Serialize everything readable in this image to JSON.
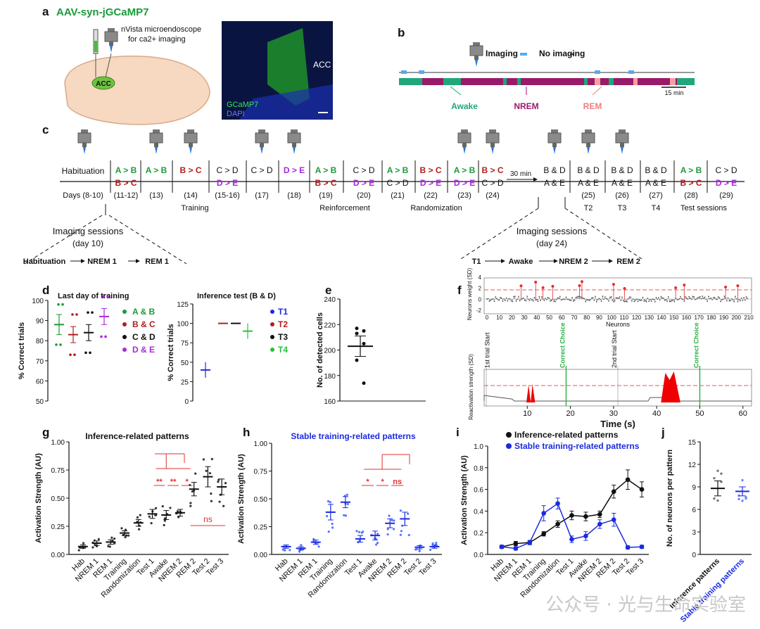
{
  "colors": {
    "green": "#1a9a3a",
    "red": "#b01e1e",
    "purple": "#a52bd8",
    "blue": "#1a2be0",
    "black": "#111111",
    "bright_green": "#26c23a",
    "bright_red": "#e8302f"
  },
  "panel_labels": [
    "a",
    "b",
    "c",
    "d",
    "e",
    "f",
    "g",
    "h",
    "i",
    "j"
  ],
  "panel_a": {
    "title": "AAV-syn-jGCaMP7",
    "device": "nVista microendoscope",
    "device2": "for ca2+ imaging",
    "region": "ACC",
    "img_region": "ACC",
    "stain1": "GCaMP7",
    "stain2": "DAPI"
  },
  "panel_b": {
    "imaging": "Imaging",
    "no_imaging": "No imaging",
    "awake": "Awake",
    "nrem": "NREM",
    "rem": "REM",
    "scale": "15 min"
  },
  "panel_c": {
    "habituation": "Habituation",
    "days_label": "Days (8-10)",
    "thirty": "30 min",
    "groups": [
      "Training",
      "Reinforcement",
      "Randomization",
      "T2",
      "T3",
      "T4",
      "Test sessions"
    ],
    "sessions": [
      {
        "top": "A > B",
        "top_c": "green",
        "bot": "B > C",
        "bot_c": "red",
        "day": "(11-12)"
      },
      {
        "top": "A > B",
        "top_c": "green",
        "bot": "",
        "bot_c": "black",
        "day": "(13)"
      },
      {
        "top": "B > C",
        "top_c": "red",
        "bot": "",
        "bot_c": "black",
        "day": "(14)"
      },
      {
        "top": "C > D",
        "top_c": "black",
        "bot": "D > E",
        "bot_c": "purple",
        "day": "(15-16)"
      },
      {
        "top": "C > D",
        "top_c": "black",
        "bot": "",
        "bot_c": "black",
        "day": "(17)"
      },
      {
        "top": "D > E",
        "top_c": "purple",
        "bot": "",
        "bot_c": "black",
        "day": "(18)"
      },
      {
        "top": "A > B",
        "top_c": "green",
        "bot": "B > C",
        "bot_c": "red",
        "day": "(19)"
      },
      {
        "top": "C > D",
        "top_c": "black",
        "bot": "D > E",
        "bot_c": "purple",
        "day": "(20)"
      },
      {
        "top": "A > B",
        "top_c": "green",
        "bot": "C > D",
        "bot_c": "black",
        "day": "(21)"
      },
      {
        "top": "B > C",
        "top_c": "red",
        "bot": "D > E",
        "bot_c": "purple",
        "day": "(22)"
      },
      {
        "top": "A > B",
        "top_c": "green",
        "bot": "D > E",
        "bot_c": "purple",
        "day": "(23)"
      },
      {
        "top": "B > C",
        "top_c": "red",
        "bot": "C > D",
        "bot_c": "black",
        "day": "(24)"
      },
      {
        "top": "B & D",
        "top_c": "black",
        "bot": "A & E",
        "bot_c": "black",
        "day": ""
      },
      {
        "top": "B & D",
        "top_c": "black",
        "bot": "A & E",
        "bot_c": "black",
        "day": "(25)"
      },
      {
        "top": "B & D",
        "top_c": "black",
        "bot": "A & E",
        "bot_c": "black",
        "day": "(26)"
      },
      {
        "top": "B & D",
        "top_c": "black",
        "bot": "A & E",
        "bot_c": "black",
        "day": "(27)"
      },
      {
        "top": "A > B",
        "top_c": "green",
        "bot": "B > C",
        "bot_c": "red",
        "day": "(28)"
      },
      {
        "top": "C > D",
        "top_c": "black",
        "bot": "D > E",
        "bot_c": "purple",
        "day": "(29)"
      }
    ],
    "imaging_left": {
      "title": "Imaging sessions",
      "sub": "(day 10)",
      "seq": [
        "Habituation",
        "NREM 1",
        "REM 1"
      ]
    },
    "imaging_right": {
      "title": "Imaging sessions",
      "sub": "(day 24)",
      "seq": [
        "T1",
        "Awake",
        "NREM 2",
        "REM 2"
      ]
    }
  },
  "chart_data": [
    {
      "panel": "d-left",
      "type": "scatter",
      "title": "Last day of training",
      "ylabel": "% Correct trials",
      "ylim": [
        50,
        100
      ],
      "yticks": [
        "50",
        "60",
        "70",
        "80",
        "90",
        "100"
      ],
      "series": [
        {
          "name": "A & B",
          "color": "green",
          "mean": 88,
          "sem": 5
        },
        {
          "name": "B & C",
          "color": "red",
          "mean": 83,
          "sem": 4
        },
        {
          "name": "C & D",
          "color": "black",
          "mean": 84,
          "sem": 4
        },
        {
          "name": "D & E",
          "color": "purple",
          "mean": 92,
          "sem": 4
        }
      ]
    },
    {
      "panel": "d-right",
      "type": "scatter",
      "title": "Inference test (B & D)",
      "ylabel": "% Correct trials",
      "ylim": [
        0,
        125
      ],
      "yticks": [
        "0",
        "25",
        "50",
        "75",
        "100",
        "125"
      ],
      "series": [
        {
          "name": "T1",
          "color": "blue",
          "mean": 40,
          "sem": 10
        },
        {
          "name": "T2",
          "color": "red",
          "mean": 100,
          "sem": 0
        },
        {
          "name": "T3",
          "color": "black",
          "mean": 100,
          "sem": 0
        },
        {
          "name": "T4",
          "color": "bright_green",
          "mean": 90,
          "sem": 10
        }
      ]
    },
    {
      "panel": "e",
      "type": "scatter",
      "ylabel": "No. of detected cells",
      "ylim": [
        160,
        240
      ],
      "yticks": [
        "160",
        "180",
        "200",
        "220",
        "240"
      ],
      "points": [
        217,
        215,
        213,
        205,
        192,
        174
      ],
      "mean": 203,
      "sem": 8
    },
    {
      "panel": "f-top",
      "type": "bar",
      "ylabel": "Neurons weight (SD)",
      "xlabel": "Neurons",
      "ylim": [
        -2,
        4
      ],
      "xticks": [
        "0",
        "10",
        "20",
        "30",
        "40",
        "50",
        "60",
        "70",
        "80",
        "90",
        "100",
        "110",
        "120",
        "130",
        "140",
        "150",
        "160",
        "170",
        "180",
        "190",
        "200",
        "210"
      ],
      "yticks": [
        "-2",
        "0",
        "2",
        "4"
      ]
    },
    {
      "panel": "f-bottom",
      "type": "line",
      "ylabel": "Reactivation strength (SD)",
      "xlabel": "Time (s)",
      "xlim": [
        0,
        62
      ],
      "ylim": [
        0,
        8
      ],
      "xticks": [
        "10",
        "20",
        "30",
        "40",
        "50",
        "60"
      ],
      "annotations": [
        "1st trial Start",
        "Correct Choice",
        "2nd trial Start",
        "Correct Choice"
      ]
    },
    {
      "panel": "g",
      "type": "scatter",
      "title": "Inference-related patterns",
      "ylabel": "Activation Strength (AU)",
      "ylim": [
        0,
        1
      ],
      "yticks": [
        "0.00",
        "0.25",
        "0.50",
        "0.75",
        "1.00"
      ],
      "categories": [
        "Hab",
        "NREM 1",
        "REM 1",
        "Training",
        "Randomization",
        "Test 1",
        "Awake",
        "NREM 2",
        "REM 2",
        "Test 2",
        "Test 3"
      ],
      "means": [
        0.07,
        0.1,
        0.11,
        0.19,
        0.28,
        0.36,
        0.35,
        0.37,
        0.58,
        0.69,
        0.6
      ],
      "sems": [
        0.015,
        0.02,
        0.02,
        0.02,
        0.03,
        0.04,
        0.04,
        0.03,
        0.06,
        0.09,
        0.07
      ],
      "sig": [
        "**",
        "**",
        "*",
        "ns"
      ]
    },
    {
      "panel": "h",
      "type": "scatter",
      "title": "Stable training-related patterns",
      "ylabel": "Activation Strength (AU)",
      "ylim": [
        0,
        1
      ],
      "yticks": [
        "0.00",
        "0.25",
        "0.50",
        "0.75",
        "1.00"
      ],
      "categories": [
        "Hab",
        "NREM 1",
        "REM 1",
        "Training",
        "Randomization",
        "Test 1",
        "Awake",
        "NREM 2",
        "REM 2",
        "Test 2",
        "Test 3"
      ],
      "means": [
        0.07,
        0.055,
        0.11,
        0.38,
        0.47,
        0.14,
        0.17,
        0.28,
        0.32,
        0.065,
        0.07
      ],
      "sems": [
        0.015,
        0.015,
        0.02,
        0.07,
        0.05,
        0.03,
        0.04,
        0.04,
        0.06,
        0.015,
        0.015
      ],
      "sig": [
        "*",
        "*",
        "ns"
      ]
    },
    {
      "panel": "i",
      "type": "line",
      "ylabel": "Activation Strength (AU)",
      "ylim": [
        0,
        1
      ],
      "yticks": [
        "0.0",
        "0.2",
        "0.4",
        "0.6",
        "0.8",
        "1.0"
      ],
      "categories": [
        "Hab",
        "NREM 1",
        "REM 1",
        "Training",
        "Randomization",
        "Test 1",
        "Awake",
        "NREM 2",
        "REM 2",
        "Test 2",
        "Test 3"
      ],
      "series": [
        {
          "name": "Inference-related patterns",
          "color": "black",
          "values": [
            0.07,
            0.1,
            0.11,
            0.19,
            0.28,
            0.36,
            0.35,
            0.37,
            0.58,
            0.69,
            0.6
          ],
          "sems": [
            0.015,
            0.02,
            0.02,
            0.02,
            0.03,
            0.04,
            0.04,
            0.03,
            0.06,
            0.09,
            0.07
          ]
        },
        {
          "name": "Stable training-related patterns",
          "color": "blue",
          "values": [
            0.07,
            0.055,
            0.11,
            0.38,
            0.47,
            0.14,
            0.17,
            0.28,
            0.32,
            0.065,
            0.07
          ],
          "sems": [
            0.015,
            0.015,
            0.02,
            0.07,
            0.05,
            0.03,
            0.04,
            0.04,
            0.06,
            0.015,
            0.015
          ]
        }
      ]
    },
    {
      "panel": "j",
      "type": "scatter",
      "ylabel": "No. of neurons per pattern",
      "ylim": [
        0,
        15
      ],
      "yticks": [
        "0",
        "3",
        "6",
        "9",
        "12",
        "15"
      ],
      "categories": [
        "Inference patterns",
        "Stable training patterns"
      ],
      "means": [
        8.8,
        8.4
      ],
      "sems": [
        1.0,
        0.6
      ]
    }
  ],
  "watermark": "公众号 · 光与生命实验室"
}
